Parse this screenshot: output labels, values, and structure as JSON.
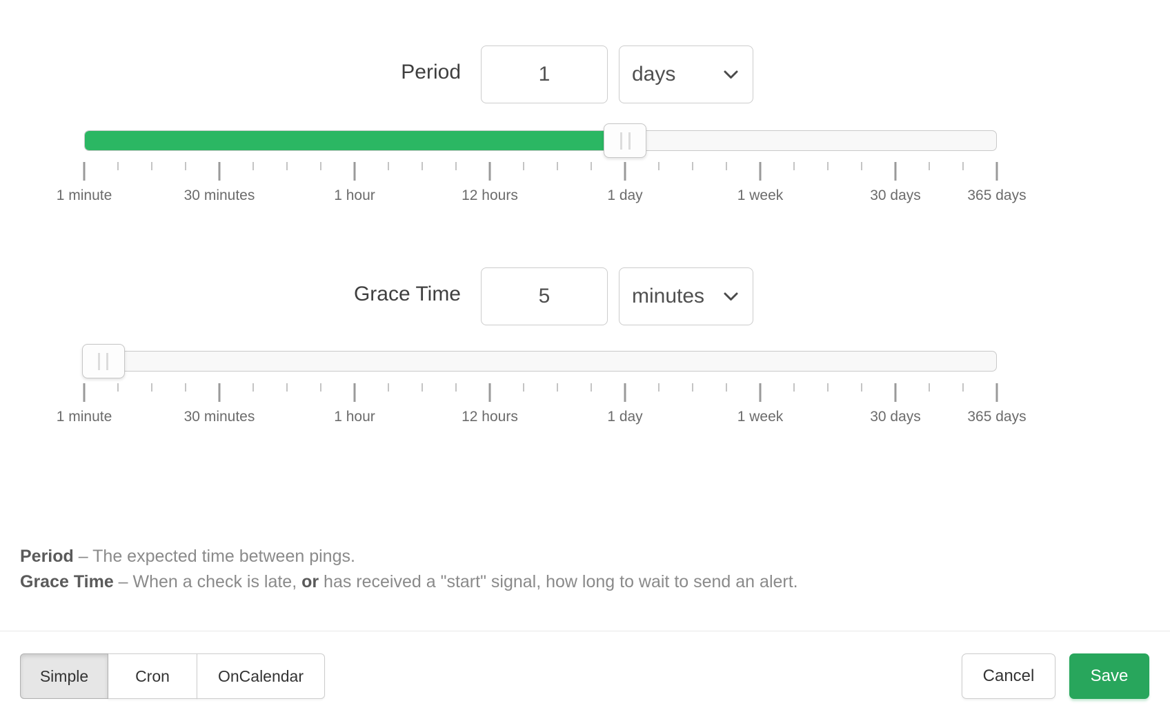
{
  "colors": {
    "slider_fill_green": "#2BB763",
    "save_button_green": "#28A65C"
  },
  "period": {
    "label": "Period",
    "value": "1",
    "unit": "days",
    "slider_percent": 59.26
  },
  "grace": {
    "label": "Grace Time",
    "value": "5",
    "unit": "minutes",
    "slider_percent": 2.1
  },
  "ruler": {
    "interval_count": 27,
    "major_indices": [
      0,
      4,
      8,
      12,
      16,
      20,
      24,
      27
    ],
    "labels": [
      "1 minute",
      "30 minutes",
      "1 hour",
      "12 hours",
      "1 day",
      "1 week",
      "30 days",
      "365 days"
    ]
  },
  "help_lines": [
    {
      "segments": [
        {
          "bold": true,
          "text": "Period"
        },
        {
          "bold": false,
          "text": " – The expected time between pings."
        }
      ]
    },
    {
      "segments": [
        {
          "bold": true,
          "text": "Grace Time"
        },
        {
          "bold": false,
          "text": " – When a check is late, "
        },
        {
          "bold": true,
          "text": "or"
        },
        {
          "bold": false,
          "text": " has received a \"start\" signal, how long to wait to send an alert."
        }
      ]
    }
  ],
  "footer": {
    "mode_buttons": [
      {
        "label": "Simple",
        "active": true
      },
      {
        "label": "Cron",
        "active": false
      },
      {
        "label": "OnCalendar",
        "active": false
      }
    ],
    "cancel_label": "Cancel",
    "save_label": "Save"
  }
}
